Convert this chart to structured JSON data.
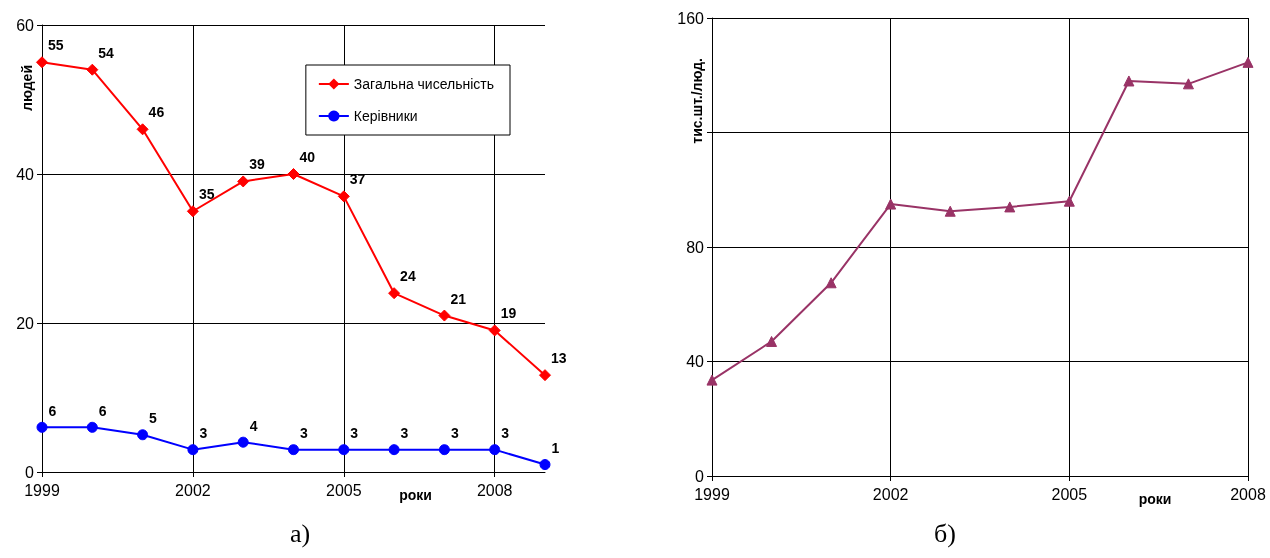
{
  "chart_data": [
    {
      "type": "line",
      "title": "а)",
      "xlabel": "роки",
      "ylabel": "людей",
      "x": [
        1999,
        2000,
        2001,
        2002,
        2003,
        2004,
        2005,
        2006,
        2007,
        2008,
        2009
      ],
      "series": [
        {
          "name": "Загальна чисельність",
          "color": "#ff0000",
          "marker": "diamond",
          "values": [
            55,
            54,
            46,
            35,
            39,
            40,
            37,
            24,
            21,
            19,
            13
          ]
        },
        {
          "name": "Керівники",
          "color": "#0000ff",
          "marker": "circle",
          "values": [
            6,
            6,
            5,
            3,
            4,
            3,
            3,
            3,
            3,
            3,
            1
          ]
        }
      ],
      "xlim": [
        1999,
        2009
      ],
      "xticks": [
        1999,
        2002,
        2005,
        2008
      ],
      "ylim": [
        0,
        60
      ],
      "yticks": [
        0,
        20,
        40,
        60
      ],
      "grid": true,
      "legend": "top right",
      "data_labels": true
    },
    {
      "type": "line",
      "title": "б)",
      "xlabel": "роки",
      "ylabel": "тис.шт./люд.",
      "x": [
        1999,
        2000,
        2001,
        2002,
        2003,
        2004,
        2005,
        2006,
        2007,
        2008
      ],
      "series": [
        {
          "color": "#993366",
          "marker": "triangle",
          "values": [
            33.5,
            47,
            67.5,
            95,
            92.5,
            94,
            96,
            138,
            137,
            144.5
          ]
        }
      ],
      "xlim": [
        1999,
        2008
      ],
      "xticks": [
        1999,
        2002,
        2005,
        2008
      ],
      "ylim": [
        0,
        160
      ],
      "yticks": [
        0,
        40,
        80,
        {
          "value": 120,
          "label": null
        },
        160
      ],
      "grid": true
    }
  ]
}
